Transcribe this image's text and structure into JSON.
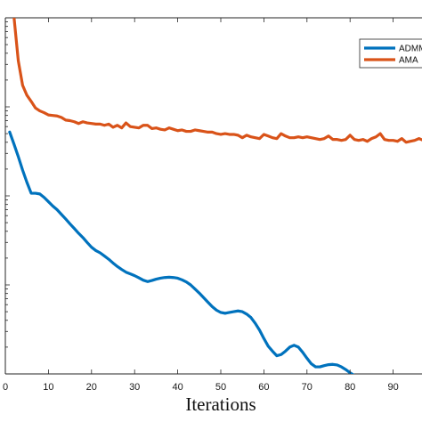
{
  "chart_data": {
    "type": "line",
    "title": "",
    "xlabel": "Iterations",
    "ylabel": "",
    "xlim": [
      0,
      100
    ],
    "ylim_log": [
      0.1,
      1000
    ],
    "y_scale": "log",
    "xticks": [
      0,
      10,
      20,
      30,
      40,
      50,
      60,
      70,
      80,
      90
    ],
    "x_tick_labels": [
      "0",
      "10",
      "20",
      "30",
      "40",
      "50",
      "60",
      "70",
      "80",
      "90"
    ],
    "grid": false,
    "legend_position": "top-right",
    "series": [
      {
        "name": "ADMM",
        "color": "#0072BD",
        "x": [
          1,
          2,
          3,
          4,
          5,
          6,
          7,
          8,
          9,
          10,
          11,
          12,
          13,
          14,
          15,
          16,
          17,
          18,
          19,
          20,
          21,
          22,
          23,
          24,
          25,
          26,
          27,
          28,
          29,
          30,
          31,
          32,
          33,
          34,
          35,
          36,
          37,
          38,
          39,
          40,
          41,
          42,
          43,
          44,
          45,
          46,
          47,
          48,
          49,
          50,
          51,
          52,
          53,
          54,
          55,
          56,
          57,
          58,
          59,
          60,
          61,
          62,
          63,
          64,
          65,
          66,
          67,
          68,
          69,
          70,
          71,
          72,
          73,
          74,
          75,
          76,
          77,
          78,
          79,
          80,
          81,
          82,
          83,
          84,
          85,
          86,
          87,
          88,
          89,
          90,
          91,
          92,
          93,
          94,
          95,
          96,
          97,
          98
        ],
        "y": [
          52.1,
          38.2,
          27.6,
          19.5,
          14.2,
          10.7,
          10.7,
          10.5,
          9.6,
          8.6,
          7.7,
          7.0,
          6.2,
          5.5,
          4.85,
          4.3,
          3.8,
          3.4,
          2.99,
          2.65,
          2.43,
          2.29,
          2.11,
          1.94,
          1.76,
          1.61,
          1.49,
          1.39,
          1.33,
          1.27,
          1.2,
          1.13,
          1.09,
          1.12,
          1.16,
          1.19,
          1.21,
          1.22,
          1.21,
          1.19,
          1.14,
          1.08,
          1.0,
          0.9,
          0.81,
          0.72,
          0.64,
          0.57,
          0.52,
          0.49,
          0.48,
          0.49,
          0.5,
          0.51,
          0.5,
          0.47,
          0.43,
          0.37,
          0.31,
          0.25,
          0.205,
          0.18,
          0.16,
          0.165,
          0.18,
          0.2,
          0.21,
          0.2,
          0.175,
          0.15,
          0.13,
          0.12,
          0.12,
          0.124,
          0.127,
          0.128,
          0.126,
          0.12,
          0.112,
          0.103,
          0.096,
          0.092,
          0.09,
          0.089,
          0.088,
          0.087,
          0.086,
          0.085,
          0.083,
          0.078,
          0.07,
          0.062,
          0.056,
          0.052,
          0.05,
          0.052,
          0.055,
          0.057
        ]
      },
      {
        "name": "AMA",
        "color": "#D95319",
        "x": [
          1,
          2,
          3,
          4,
          5,
          6,
          7,
          8,
          9,
          10,
          11,
          12,
          13,
          14,
          15,
          16,
          17,
          18,
          19,
          20,
          21,
          22,
          23,
          24,
          25,
          26,
          27,
          28,
          29,
          30,
          31,
          32,
          33,
          34,
          35,
          36,
          37,
          38,
          39,
          40,
          41,
          42,
          43,
          44,
          45,
          46,
          47,
          48,
          49,
          50,
          51,
          52,
          53,
          54,
          55,
          56,
          57,
          58,
          59,
          60,
          61,
          62,
          63,
          64,
          65,
          66,
          67,
          68,
          69,
          70,
          71,
          72,
          73,
          74,
          75,
          76,
          77,
          78,
          79,
          80,
          81,
          82,
          83,
          84,
          85,
          86,
          87,
          88,
          89,
          90,
          91,
          92,
          93,
          94,
          95,
          96,
          97,
          98
        ],
        "y": [
          1450,
          1030,
          330,
          175,
          135,
          115,
          97,
          90,
          86,
          81,
          80,
          79,
          76,
          71,
          70,
          68,
          65,
          68,
          66,
          65,
          64,
          64,
          62,
          64,
          59,
          62,
          58,
          66,
          60,
          59,
          58,
          62,
          62,
          57,
          58,
          56,
          55,
          58,
          56,
          54,
          55,
          53,
          53,
          55,
          54,
          53,
          52,
          52,
          50,
          49,
          50,
          49,
          49,
          48,
          45,
          48,
          46,
          45,
          44,
          49,
          47,
          45,
          44,
          50,
          47,
          45,
          45,
          46,
          45,
          46,
          45,
          44,
          43,
          44,
          47,
          43,
          43,
          42,
          43,
          48,
          43,
          42,
          43,
          41,
          44,
          46,
          50,
          43,
          42,
          42,
          41,
          44,
          40,
          41,
          42,
          44,
          42,
          43
        ]
      }
    ]
  }
}
